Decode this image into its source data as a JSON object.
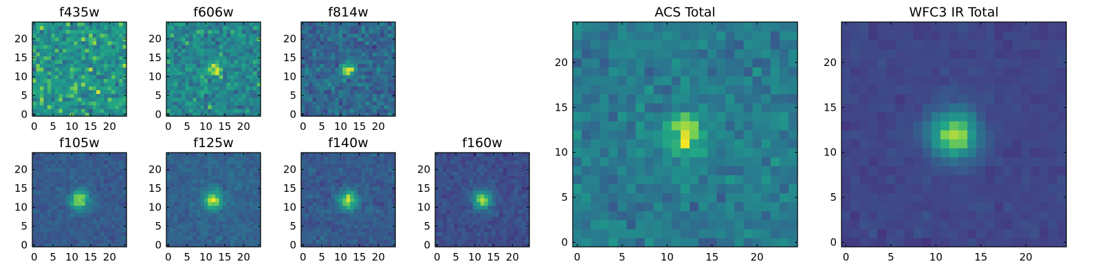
{
  "chart_data": {
    "type": "heatmap",
    "colormap": "viridis",
    "image_size": [
      25,
      25
    ],
    "source_position": [
      12,
      12
    ],
    "x_ticks": [
      0,
      5,
      10,
      15,
      20
    ],
    "y_ticks": [
      0,
      5,
      10,
      15,
      20
    ],
    "panels": [
      {
        "title": "f435w",
        "source_strength": 0.0,
        "source_width": 1.5,
        "noise": 0.34,
        "background": 0.65,
        "seed": 11
      },
      {
        "title": "f606w",
        "source_strength": 0.32,
        "source_width": 1.4,
        "noise": 0.3,
        "background": 0.58,
        "seed": 23
      },
      {
        "title": "f814w",
        "source_strength": 0.48,
        "source_width": 1.4,
        "noise": 0.25,
        "background": 0.42,
        "seed": 37
      },
      {
        "title": "f105w",
        "source_strength": 0.62,
        "source_width": 1.8,
        "noise": 0.12,
        "background": 0.36,
        "seed": 41
      },
      {
        "title": "f125w",
        "source_strength": 0.6,
        "source_width": 1.8,
        "noise": 0.13,
        "background": 0.4,
        "seed": 53
      },
      {
        "title": "f140w",
        "source_strength": 0.62,
        "source_width": 1.8,
        "noise": 0.14,
        "background": 0.36,
        "seed": 67
      },
      {
        "title": "f160w",
        "source_strength": 0.64,
        "source_width": 1.8,
        "noise": 0.13,
        "background": 0.3,
        "seed": 79
      },
      {
        "title": "ACS Total",
        "source_strength": 0.4,
        "source_width": 1.7,
        "noise": 0.2,
        "background": 0.52,
        "seed": 83
      },
      {
        "title": "WFC3 IR Total",
        "source_strength": 0.7,
        "source_width": 1.9,
        "noise": 0.07,
        "background": 0.26,
        "seed": 97
      }
    ]
  }
}
